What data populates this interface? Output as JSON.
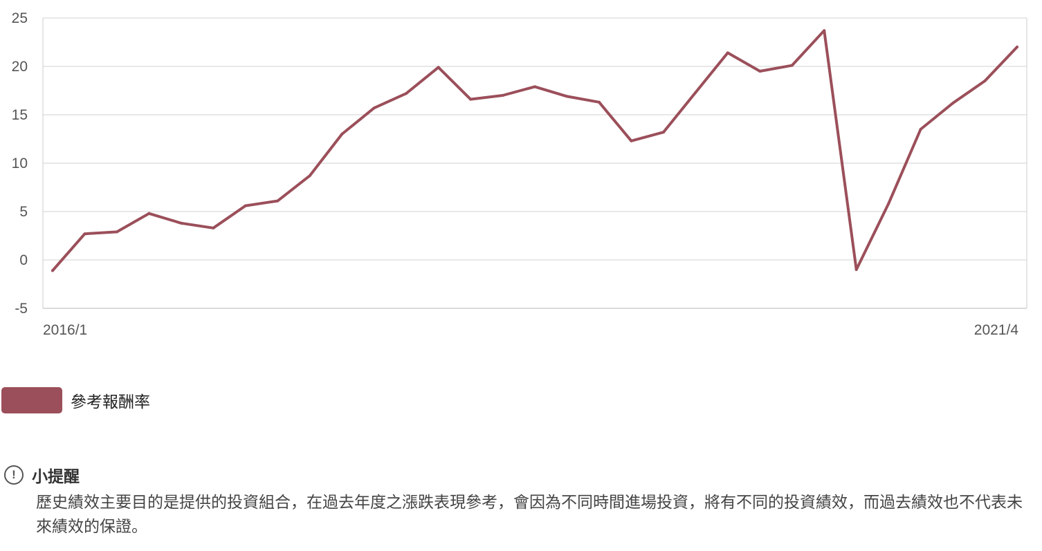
{
  "chart_data": {
    "type": "line",
    "title": "",
    "xlabel": "",
    "ylabel": "",
    "x_tick_labels": [
      "2016/1",
      "2021/4"
    ],
    "y_ticks": [
      -5,
      0,
      5,
      10,
      15,
      20,
      25
    ],
    "ylim": [
      -5,
      25
    ],
    "grid": true,
    "series": [
      {
        "name": "參考報酬率",
        "color": "#9b4f5a",
        "values": [
          -1.1,
          2.7,
          2.9,
          4.8,
          3.8,
          3.3,
          5.6,
          6.1,
          8.7,
          13.0,
          15.7,
          17.2,
          19.9,
          16.6,
          17.0,
          17.9,
          16.9,
          16.3,
          12.3,
          13.2,
          17.3,
          21.4,
          19.5,
          20.1,
          23.7,
          -1.0,
          5.8,
          13.5,
          16.2,
          18.5,
          22.0
        ]
      }
    ]
  },
  "legend": {
    "label": "參考報酬率",
    "color": "#9b4f5a"
  },
  "tip": {
    "icon": "exclamation-circle-icon",
    "title": "小提醒",
    "body": "歷史績效主要目的是提供的投資組合，在過去年度之漲跌表現參考，會因為不同時間進場投資，將有不同的投資績效，而過去績效也不代表未來績效的保證。"
  }
}
